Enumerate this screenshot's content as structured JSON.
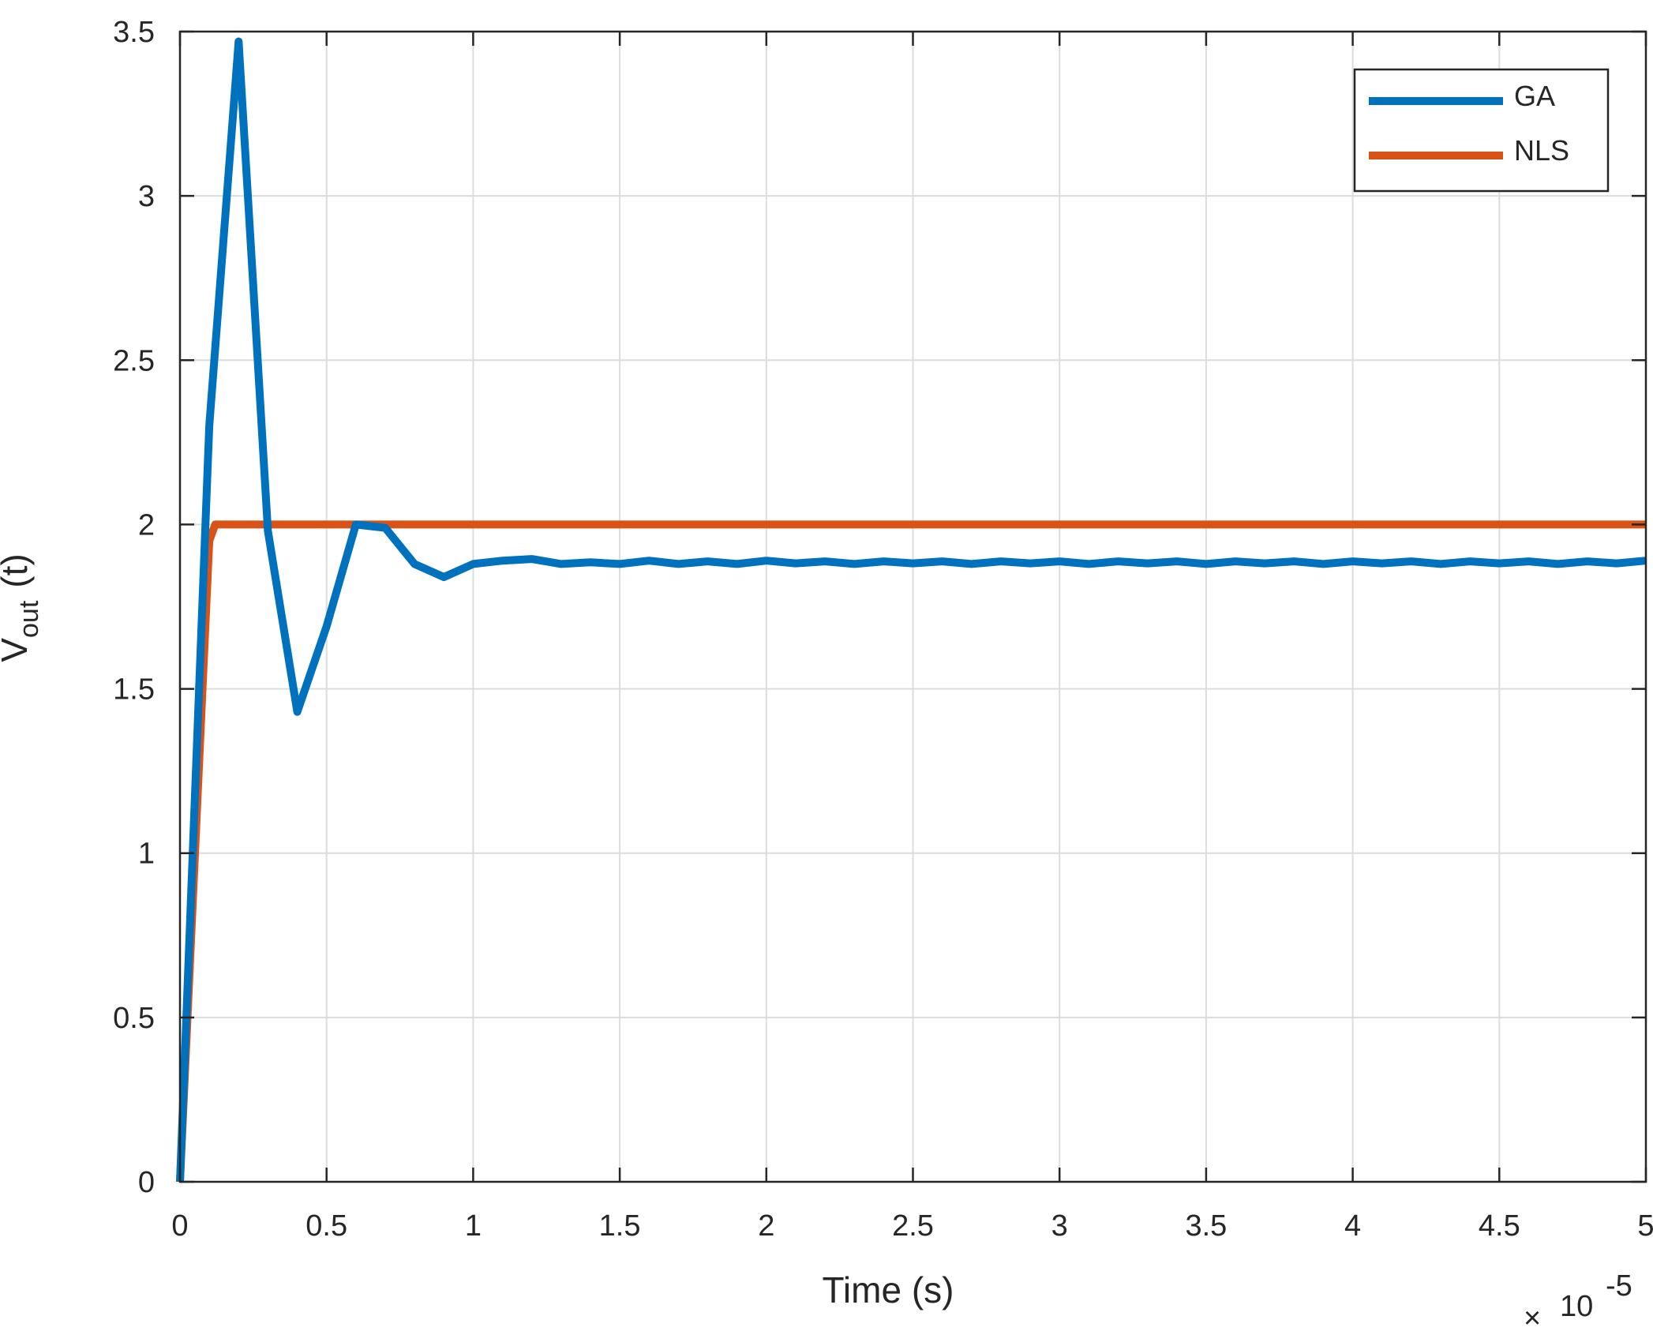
{
  "chart_data": {
    "type": "line",
    "xlabel": "Time (s)",
    "ylabel": {
      "main": "V",
      "sub": "out",
      "suffix": "(t)"
    },
    "x_exponent": {
      "times": "×",
      "base": "10",
      "power": "-5"
    },
    "xlim": [
      0,
      5
    ],
    "ylim": [
      0,
      3.5
    ],
    "grid": true,
    "legend_position": "top-right",
    "x_ticks": [
      "0",
      "0.5",
      "1",
      "1.5",
      "2",
      "2.5",
      "3",
      "3.5",
      "4",
      "4.5",
      "5"
    ],
    "y_ticks": [
      "0",
      "0.5",
      "1",
      "1.5",
      "2",
      "2.5",
      "3",
      "3.5"
    ],
    "series": [
      {
        "name": "GA",
        "color": "#0072BD",
        "x": [
          0,
          0.1,
          0.1,
          0.2,
          0.3,
          0.4,
          0.5,
          0.6,
          0.7,
          0.8,
          0.9,
          1.0,
          1.1,
          1.2,
          1.3,
          1.4,
          1.5,
          1.6,
          1.7,
          1.8,
          1.9,
          2.0,
          2.1,
          2.2,
          2.3,
          2.4,
          2.5,
          2.6,
          2.7,
          2.8,
          2.9,
          3.0,
          3.1,
          3.2,
          3.3,
          3.4,
          3.5,
          3.6,
          3.7,
          3.8,
          3.9,
          4.0,
          4.1,
          4.2,
          4.3,
          4.4,
          4.5,
          4.6,
          4.7,
          4.8,
          4.9,
          5.0
        ],
        "y": [
          0,
          2.3,
          2.3,
          3.47,
          1.98,
          1.43,
          1.69,
          2.0,
          1.99,
          1.88,
          1.84,
          1.88,
          1.89,
          1.895,
          1.88,
          1.885,
          1.88,
          1.89,
          1.88,
          1.888,
          1.88,
          1.89,
          1.882,
          1.888,
          1.88,
          1.888,
          1.882,
          1.888,
          1.88,
          1.888,
          1.882,
          1.888,
          1.88,
          1.888,
          1.882,
          1.888,
          1.88,
          1.888,
          1.882,
          1.888,
          1.88,
          1.888,
          1.882,
          1.888,
          1.88,
          1.888,
          1.882,
          1.888,
          1.88,
          1.888,
          1.882,
          1.89
        ]
      },
      {
        "name": "NLS",
        "color": "#D95319",
        "x": [
          0,
          0.1,
          0.12,
          5.0
        ],
        "y": [
          0,
          1.95,
          2.0,
          2.0
        ]
      }
    ]
  }
}
